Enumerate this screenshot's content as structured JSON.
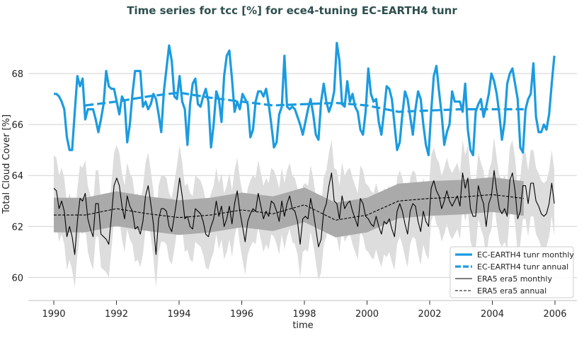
{
  "chart_data": {
    "type": "line",
    "title": "Time series for tcc [%] for ece4-tuning EC-EARTH4 tunr",
    "xlabel": "time",
    "ylabel": "Total Cloud Cover [%]",
    "xlim": [
      1989.2,
      2006.8
    ],
    "ylim": [
      59.1,
      69.9
    ],
    "xticks": [
      "1990",
      "1992",
      "1994",
      "1996",
      "1998",
      "2000",
      "2002",
      "2004",
      "2006"
    ],
    "yticks": [
      "60",
      "62",
      "64",
      "66",
      "68"
    ],
    "grid": "horizontal",
    "legend_position": "bottom-right",
    "colors": {
      "model": "#1b9be0",
      "obs": "#000000",
      "band_outer": "#dddddd",
      "band_inner": "#aaaaaa"
    },
    "monthly_start": 1990,
    "series": [
      {
        "name": "EC-EARTH4 tunr monthly",
        "style": "solid-thick",
        "values": [
          67.2,
          67.2,
          67.1,
          66.9,
          66.6,
          65.5,
          65.0,
          65.0,
          66.5,
          67.9,
          67.5,
          67.8,
          66.2,
          66.6,
          66.6,
          66.6,
          66.2,
          65.7,
          66.2,
          66.8,
          68.1,
          67.5,
          67.4,
          67.4,
          66.9,
          66.4,
          67.1,
          66.9,
          65.3,
          66.0,
          67.2,
          68.1,
          68.1,
          68.1,
          66.7,
          66.9,
          66.6,
          66.8,
          67.2,
          67.0,
          66.4,
          65.7,
          67.3,
          68.2,
          69.1,
          68.5,
          67.1,
          67.0,
          67.9,
          66.9,
          66.6,
          65.2,
          66.8,
          67.6,
          67.8,
          66.8,
          66.7,
          67.1,
          67.4,
          66.9,
          65.1,
          66.0,
          67.3,
          67.0,
          66.1,
          67.9,
          68.7,
          68.9,
          67.8,
          66.5,
          66.9,
          66.6,
          67.2,
          67.0,
          66.8,
          65.5,
          65.8,
          66.9,
          67.3,
          67.3,
          67.1,
          67.4,
          66.8,
          66.0,
          65.1,
          65.3,
          66.4,
          66.7,
          68.7,
          66.7,
          66.6,
          66.7,
          66.6,
          66.3,
          66.0,
          65.6,
          66.1,
          66.6,
          67.0,
          66.4,
          65.6,
          65.4,
          66.9,
          67.6,
          66.9,
          66.5,
          66.8,
          67.3,
          69.2,
          68.5,
          66.8,
          66.7,
          67.7,
          66.9,
          67.2,
          66.7,
          66.5,
          65.8,
          65.6,
          66.5,
          68.2,
          67.2,
          66.9,
          67.0,
          66.1,
          65.6,
          66.5,
          67.5,
          67.4,
          67.0,
          66.0,
          65.0,
          65.3,
          66.4,
          67.3,
          67.0,
          66.3,
          65.6,
          66.6,
          67.3,
          67.0,
          66.0,
          65.2,
          64.8,
          66.5,
          67.9,
          68.3,
          67.3,
          66.4,
          65.2,
          65.7,
          66.0,
          67.3,
          66.9,
          66.9,
          66.9,
          66.5,
          67.6,
          65.8,
          65.0,
          64.8,
          66.5,
          66.8,
          67.0,
          66.3,
          66.7,
          67.2,
          68.0,
          67.7,
          67.2,
          66.4,
          65.4,
          66.1,
          67.6,
          68.0,
          68.2,
          67.6,
          67.0,
          65.1,
          64.9,
          66.6,
          67.0,
          67.2,
          68.4,
          66.3,
          65.7,
          65.7,
          66.0,
          65.8,
          66.4,
          67.6,
          68.7
        ]
      },
      {
        "name": "EC-EARTH4 tunr annual",
        "style": "dashed-thick",
        "x": [
          1991,
          1992,
          1993,
          1994,
          1995,
          1996,
          1997,
          1998,
          1999,
          2000,
          2001,
          2002,
          2003,
          2004,
          2005
        ],
        "values": [
          66.75,
          66.9,
          67.1,
          67.25,
          67.05,
          66.9,
          66.75,
          66.8,
          66.85,
          66.75,
          66.5,
          66.55,
          66.6,
          66.6,
          66.6
        ]
      },
      {
        "name": "ERA5 era5 monthly",
        "style": "solid-thin",
        "spread": 1.3,
        "values": [
          63.5,
          63.4,
          62.7,
          63.0,
          62.6,
          61.6,
          62.0,
          61.6,
          60.9,
          62.2,
          63.1,
          63.0,
          63.3,
          62.3,
          61.9,
          61.6,
          62.9,
          62.9,
          61.7,
          61.6,
          61.5,
          61.3,
          62.4,
          63.6,
          63.9,
          63.6,
          62.8,
          62.3,
          63.2,
          62.8,
          62.6,
          61.9,
          62.0,
          61.7,
          62.2,
          63.2,
          63.6,
          62.9,
          62.1,
          60.9,
          62.3,
          62.7,
          62.7,
          62.6,
          62.0,
          61.8,
          62.4,
          63.1,
          63.9,
          63.2,
          62.3,
          62.4,
          62.0,
          61.9,
          62.7,
          62.6,
          62.5,
          62.2,
          61.7,
          61.6,
          62.0,
          62.3,
          63.0,
          62.4,
          62.8,
          62.0,
          62.3,
          62.8,
          62.1,
          62.9,
          63.4,
          62.6,
          62.0,
          61.4,
          62.2,
          62.5,
          62.7,
          62.6,
          63.3,
          62.8,
          62.3,
          62.6,
          62.4,
          63.0,
          62.9,
          62.6,
          62.2,
          63.0,
          62.4,
          62.9,
          63.2,
          62.7,
          62.6,
          62.2,
          61.3,
          62.3,
          62.4,
          62.3,
          63.1,
          62.6,
          61.9,
          61.2,
          61.5,
          62.6,
          62.9,
          63.6,
          64.1,
          63.0,
          62.9,
          62.3,
          63.2,
          62.7,
          62.9,
          63.0,
          62.6,
          62.3,
          62.0,
          63.1,
          62.9,
          62.4,
          62.3,
          62.1,
          62.0,
          62.4,
          62.0,
          61.7,
          62.2,
          62.1,
          62.3,
          61.9,
          61.6,
          62.6,
          62.9,
          62.6,
          62.1,
          61.7,
          62.6,
          62.9,
          62.8,
          62.2,
          61.8,
          62.6,
          62.2,
          62.0,
          63.5,
          63.8,
          63.4,
          63.2,
          62.7,
          63.0,
          63.4,
          63.0,
          62.8,
          63.0,
          63.2,
          62.8,
          64.1,
          63.5,
          63.9,
          62.7,
          62.4,
          62.4,
          63.6,
          63.2,
          62.9,
          62.0,
          62.9,
          63.2,
          64.2,
          63.4,
          62.7,
          62.5,
          62.7,
          62.4,
          63.8,
          64.1,
          63.4,
          62.3,
          62.6,
          63.6,
          63.6,
          62.9,
          63.7,
          63.7,
          63.0,
          62.8,
          62.5,
          62.4,
          62.5,
          62.9,
          63.7,
          62.9
        ]
      },
      {
        "name": "ERA5 era5 annual",
        "style": "dashed-thin",
        "spread": 0.68,
        "x": [
          1990,
          1991,
          1992,
          1993,
          1994,
          1995,
          1996,
          1997,
          1998,
          1999,
          2000,
          2001,
          2002,
          2003,
          2004,
          2005
        ],
        "values": [
          62.45,
          62.45,
          62.7,
          62.5,
          62.35,
          62.45,
          62.65,
          62.5,
          62.85,
          62.25,
          62.45,
          63.0,
          63.1,
          63.15,
          63.25,
          63.1
        ]
      }
    ]
  }
}
